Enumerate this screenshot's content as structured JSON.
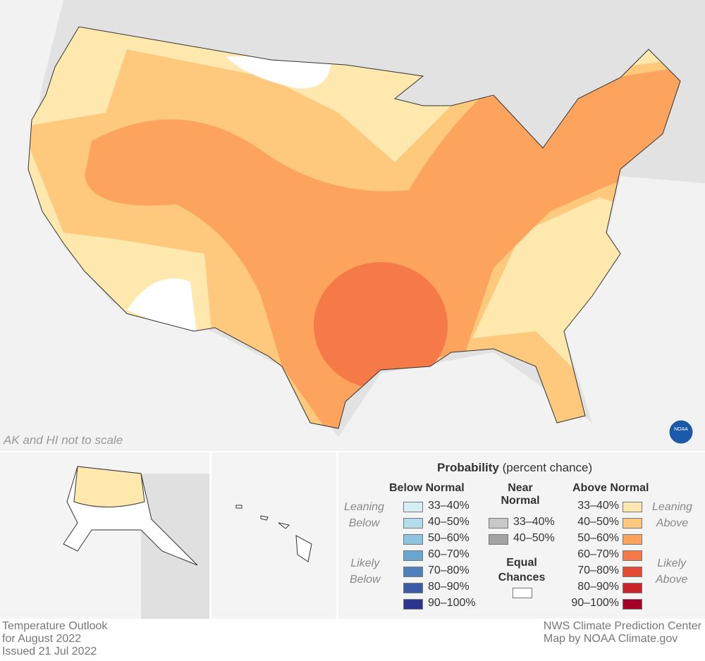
{
  "map": {
    "scale_note": "AK and HI not to scale",
    "logo": "NOAA"
  },
  "legend": {
    "title_bold": "Probability",
    "title_rest": "(percent chance)",
    "below": {
      "heading": "Below Normal",
      "leaning": "Leaning",
      "leaning2": "Below",
      "likely": "Likely",
      "likely2": "Below",
      "items": [
        {
          "label": "33–40%",
          "color": "#d6eef6"
        },
        {
          "label": "40–50%",
          "color": "#b2ddec"
        },
        {
          "label": "50–60%",
          "color": "#8cc5df"
        },
        {
          "label": "60–70%",
          "color": "#6aa7cf"
        },
        {
          "label": "70–80%",
          "color": "#4d80bd"
        },
        {
          "label": "80–90%",
          "color": "#3b5aa8"
        },
        {
          "label": "90–100%",
          "color": "#2b3590"
        }
      ]
    },
    "near": {
      "heading": "Near",
      "heading2": "Normal",
      "items": [
        {
          "label": "33–40%",
          "color": "#c8c8c8"
        },
        {
          "label": "40–50%",
          "color": "#a4a4a4"
        }
      ]
    },
    "equal": {
      "heading": "Equal",
      "heading2": "Chances",
      "color": "#ffffff"
    },
    "above": {
      "heading": "Above Normal",
      "leaning": "Leaning",
      "leaning2": "Above",
      "likely": "Likely",
      "likely2": "Above",
      "items": [
        {
          "label": "33–40%",
          "color": "#fee8ae"
        },
        {
          "label": "40–50%",
          "color": "#fec97c"
        },
        {
          "label": "50–60%",
          "color": "#fca45e"
        },
        {
          "label": "60–70%",
          "color": "#f57a48"
        },
        {
          "label": "70–80%",
          "color": "#e24c33"
        },
        {
          "label": "80–90%",
          "color": "#c92329"
        },
        {
          "label": "90–100%",
          "color": "#a50026"
        }
      ]
    }
  },
  "footer": {
    "left": [
      "Temperature Outlook",
      "for August 2022",
      "Issued 21 Jul 2022"
    ],
    "right": [
      "NWS Climate Prediction Center",
      "Map by NOAA Climate.gov"
    ]
  }
}
